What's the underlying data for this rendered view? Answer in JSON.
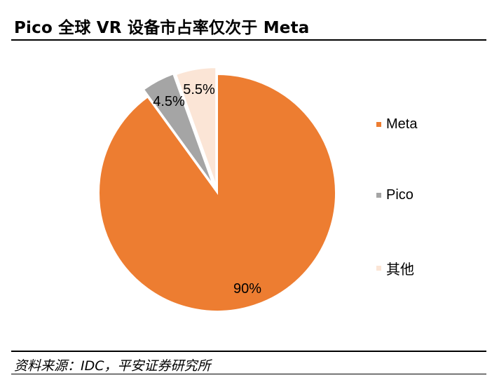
{
  "title": "Pico 全球 VR 设备市占率仅次于 Meta",
  "source": "资料来源：IDC，平安证券研究所",
  "chart_data": {
    "type": "pie",
    "slices": [
      {
        "name": "Meta",
        "value": 90,
        "label": "90%",
        "color": "#ED7D31"
      },
      {
        "name": "Pico",
        "value": 4.5,
        "label": "4.5%",
        "color": "#A5A5A5"
      },
      {
        "name": "其他",
        "value": 5.5,
        "label": "5.5%",
        "color": "#FBE5D6"
      }
    ],
    "legend_position": "right",
    "start_angle": "12 o'clock",
    "direction": "clockwise"
  }
}
